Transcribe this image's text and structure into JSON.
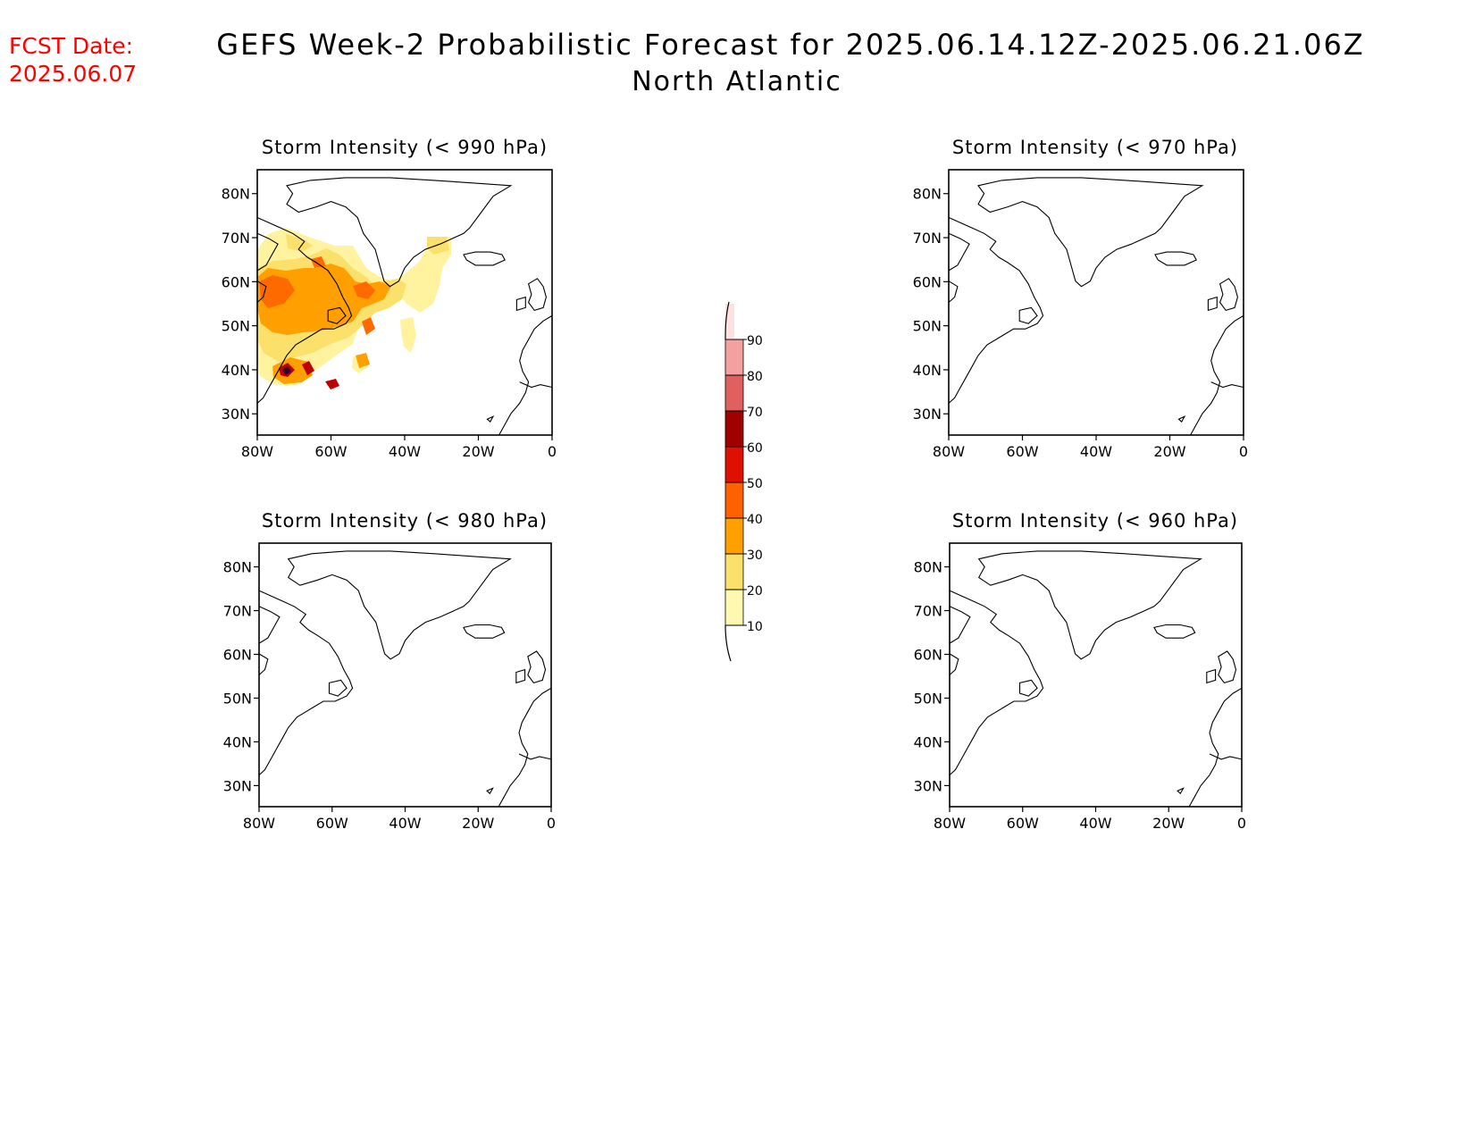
{
  "fcst_date": {
    "label": "FCST Date:",
    "value": "2025.06.07"
  },
  "title": "GEFS Week-2 Probabilistic Forecast for 2025.06.14.12Z-2025.06.21.06Z",
  "region": "North Atlantic",
  "panels": [
    {
      "title": "Storm Intensity (< 990 hPa)"
    },
    {
      "title": "Storm Intensity (< 970 hPa)"
    },
    {
      "title": "Storm Intensity (< 980 hPa)"
    },
    {
      "title": "Storm Intensity (< 960 hPa)"
    }
  ],
  "axes": {
    "lat_labels": [
      "80N",
      "70N",
      "60N",
      "50N",
      "40N",
      "30N"
    ],
    "lon_labels": [
      "80W",
      "60W",
      "40W",
      "20W",
      "0"
    ]
  },
  "colorbar": {
    "levels": [
      "10",
      "20",
      "30",
      "40",
      "50",
      "60",
      "70",
      "80",
      "90"
    ],
    "colors": [
      "#fff8b0",
      "#fbe06c",
      "#ffa000",
      "#ff6000",
      "#e01000",
      "#a00000",
      "#e06060",
      "#f4a0a0",
      "#fde0e0"
    ]
  },
  "shading": {
    "colors": {
      "light": "#fff3a0",
      "yellow": "#fbe06c",
      "orange": "#ffa000",
      "dark": "#ff6a00",
      "red": "#c00000",
      "deep": "#300030"
    }
  }
}
